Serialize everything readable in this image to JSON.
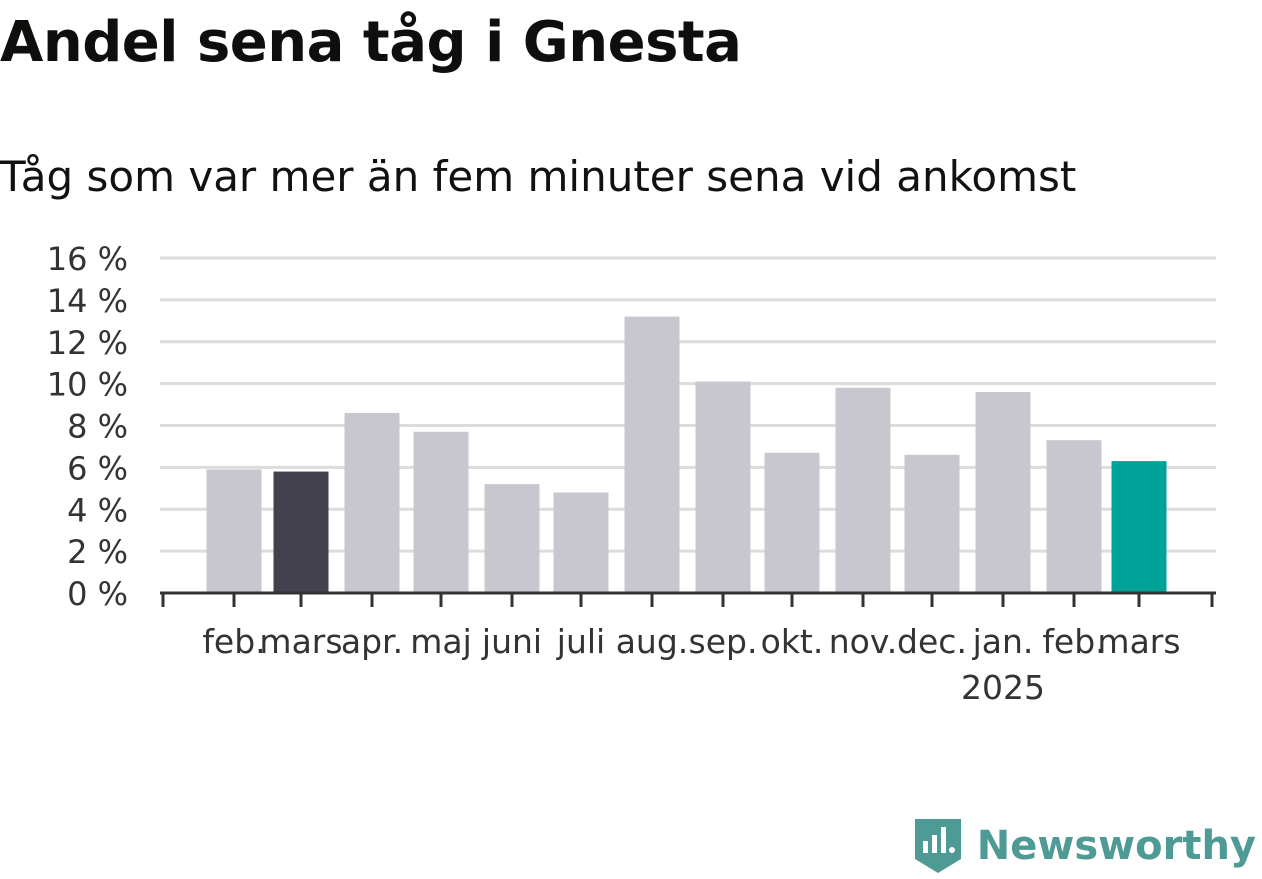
{
  "title": "Andel sena tåg i Gnesta",
  "subtitle": "Tåg som var mer än fem minuter sena vid ankomst",
  "brand": {
    "name": "Newsworthy",
    "icon": "newsworthy-logo-icon",
    "color": "#4e9a94"
  },
  "colors": {
    "bar": "#c8c7d0",
    "highlight_previous": "#43414e",
    "highlight_current": "#00a398",
    "grid": "#dcdcdc",
    "axis": "#333333"
  },
  "chart_data": {
    "type": "bar",
    "title": "Andel sena tåg i Gnesta",
    "subtitle": "Tåg som var mer än fem minuter sena vid ankomst",
    "xlabel": "",
    "ylabel": "",
    "ylim": [
      0,
      16
    ],
    "yticks": [
      0,
      2,
      4,
      6,
      8,
      10,
      12,
      14,
      16
    ],
    "ytick_labels": [
      "0 %",
      "2 %",
      "4 %",
      "6 %",
      "8 %",
      "10 %",
      "12 %",
      "14 %",
      "16 %"
    ],
    "grid": true,
    "categories": [
      "feb.",
      "mars",
      "apr.",
      "maj",
      "juni",
      "juli",
      "aug.",
      "sep.",
      "okt.",
      "nov.",
      "dec.",
      "jan.",
      "feb.",
      "mars"
    ],
    "year_labels": [
      {
        "index": 11,
        "label": "2025"
      }
    ],
    "values": [
      5.9,
      5.8,
      8.6,
      7.7,
      5.2,
      4.8,
      13.2,
      10.1,
      6.7,
      9.8,
      6.6,
      9.6,
      7.3,
      6.3
    ],
    "highlight": [
      {
        "index": 1,
        "color": "#43414e"
      },
      {
        "index": 13,
        "color": "#00a398"
      }
    ],
    "legend": "none"
  }
}
